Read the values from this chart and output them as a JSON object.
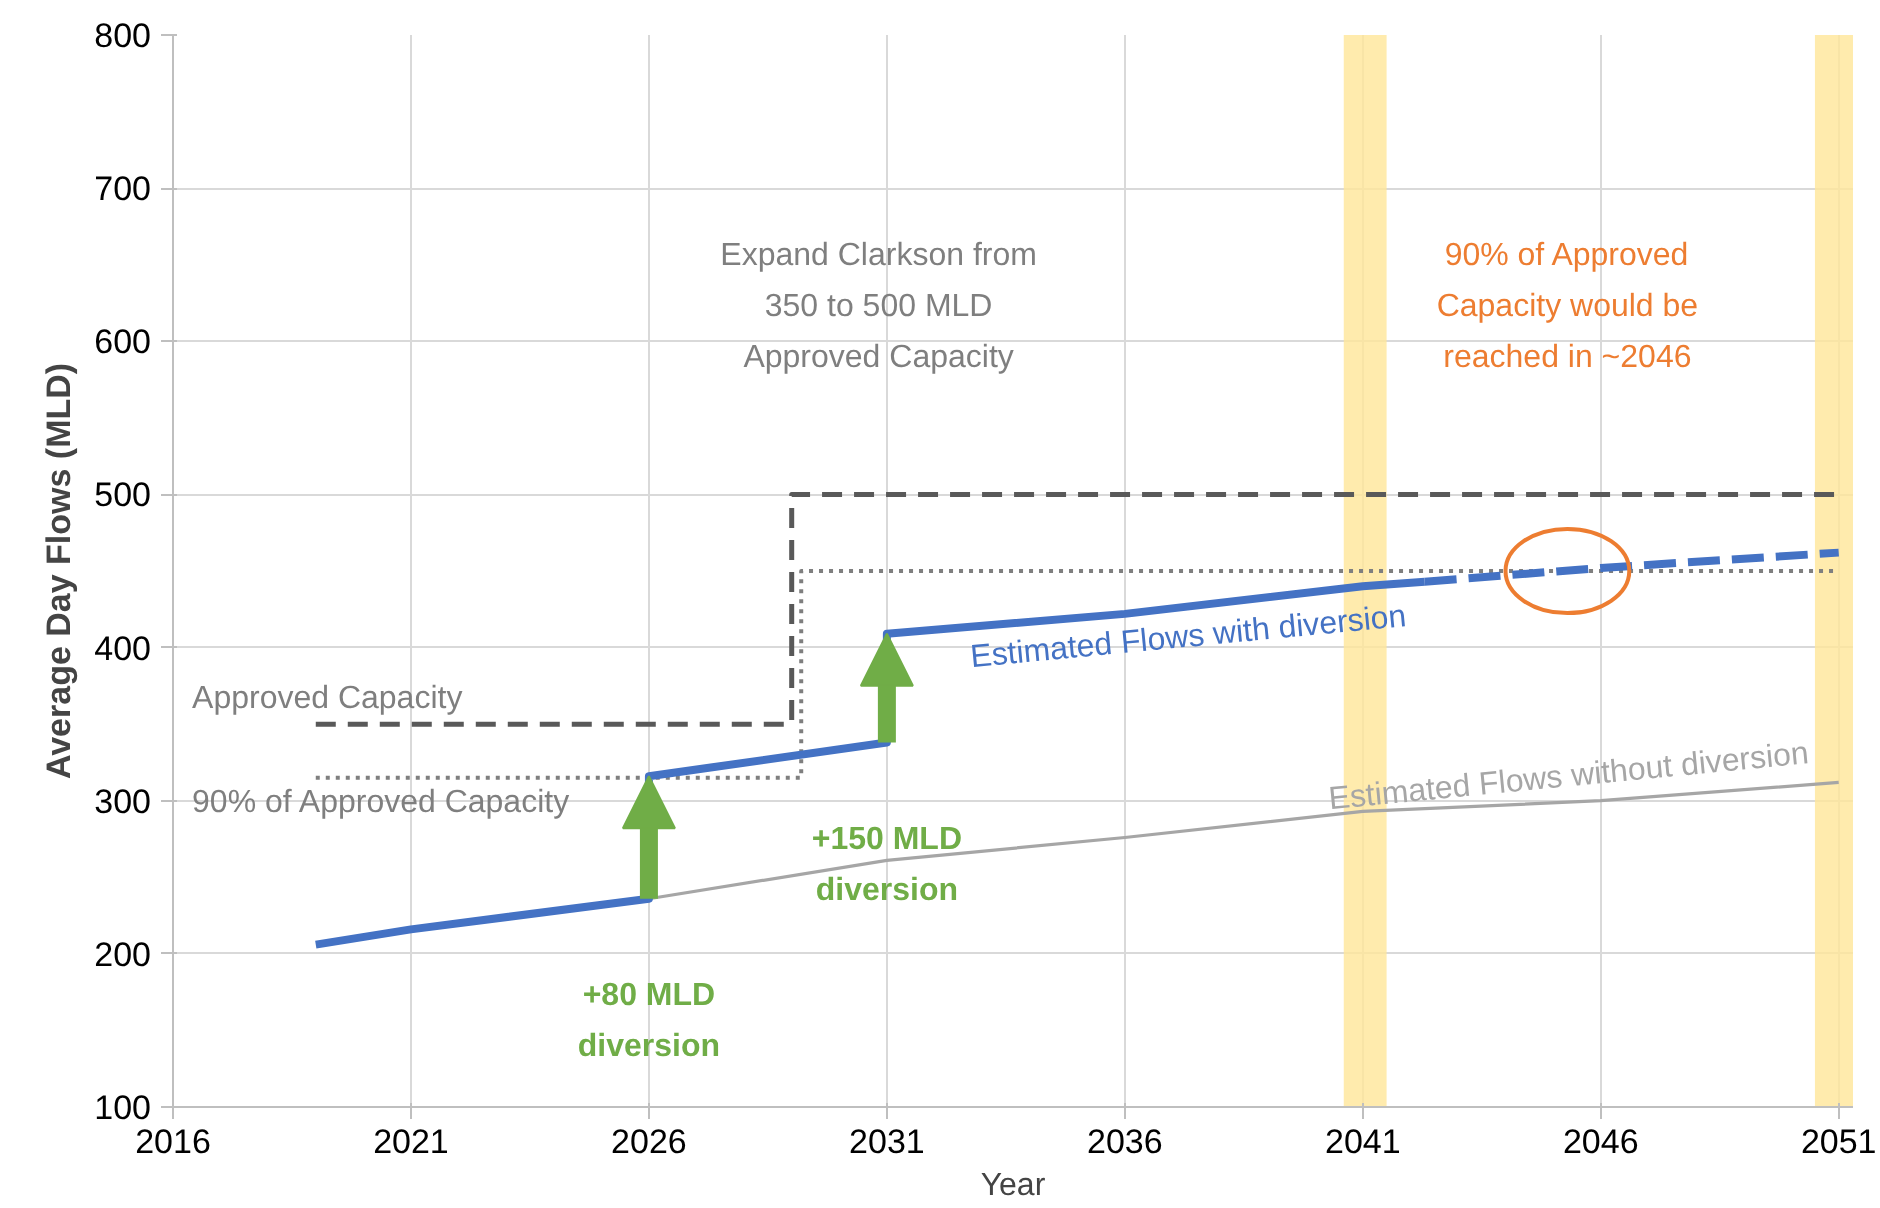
{
  "chart_data": {
    "type": "line",
    "xlabel": "Year",
    "ylabel": "Average Day Flows (MLD)",
    "xlim": [
      2016,
      2051.3
    ],
    "xticks": [
      2016,
      2021,
      2026,
      2031,
      2036,
      2041,
      2046,
      2051
    ],
    "ylim": [
      100,
      800
    ],
    "yticks": [
      100,
      200,
      300,
      400,
      500,
      600,
      700,
      800
    ],
    "grid": true,
    "legend": false,
    "marker": "none",
    "series": [
      {
        "name": "Approved Capacity",
        "color": "#595959",
        "line_style": "dashed",
        "x": [
          2019,
          2029,
          2029,
          2051
        ],
        "values": [
          350,
          350,
          500,
          500
        ]
      },
      {
        "name": "90% of Approved Capacity",
        "color": "#7f7f7f",
        "line_style": "dotted",
        "x": [
          2019,
          2029.2,
          2029.2,
          2051
        ],
        "values": [
          315,
          315,
          450,
          450
        ]
      },
      {
        "name": "Estimated Flows without diversion",
        "color": "#a6a6a6",
        "line_style": "solid",
        "x": [
          2026,
          2031,
          2036,
          2041,
          2046,
          2051
        ],
        "values": [
          236,
          261,
          276,
          293,
          300,
          312
        ]
      },
      {
        "name": "Estimated Flows with diversion",
        "color": "#4472c4",
        "line_style": "solid",
        "x": [
          2019,
          2021,
          2026,
          2026,
          2031,
          2031,
          2036,
          2041,
          2042.3
        ],
        "values": [
          206,
          216,
          236,
          316,
          338,
          409,
          422,
          440,
          443
        ]
      },
      {
        "color": "#4472c4",
        "line_style": "dashed",
        "x": [
          2042.3,
          2046,
          2051
        ],
        "values": [
          443,
          452,
          462
        ]
      }
    ],
    "bands": [
      {
        "axis": "x",
        "from": 2040.6,
        "to": 2041.5,
        "color": "#ffe699"
      },
      {
        "axis": "x",
        "from": 2050.5,
        "to": 2051.3,
        "color": "#ffe699"
      }
    ],
    "annotations": [
      "Expand Clarkson from\n350 to 500 MLD\nApproved Capacity",
      "90% of Approved\nCapacity would be\nreached in ~2046",
      {
        "text": "+80 MLD\ndiversion",
        "x": 2026,
        "y": 236
      },
      {
        "text": "+150 MLD\ndiversion",
        "x": 2031,
        "y": 338
      }
    ]
  }
}
